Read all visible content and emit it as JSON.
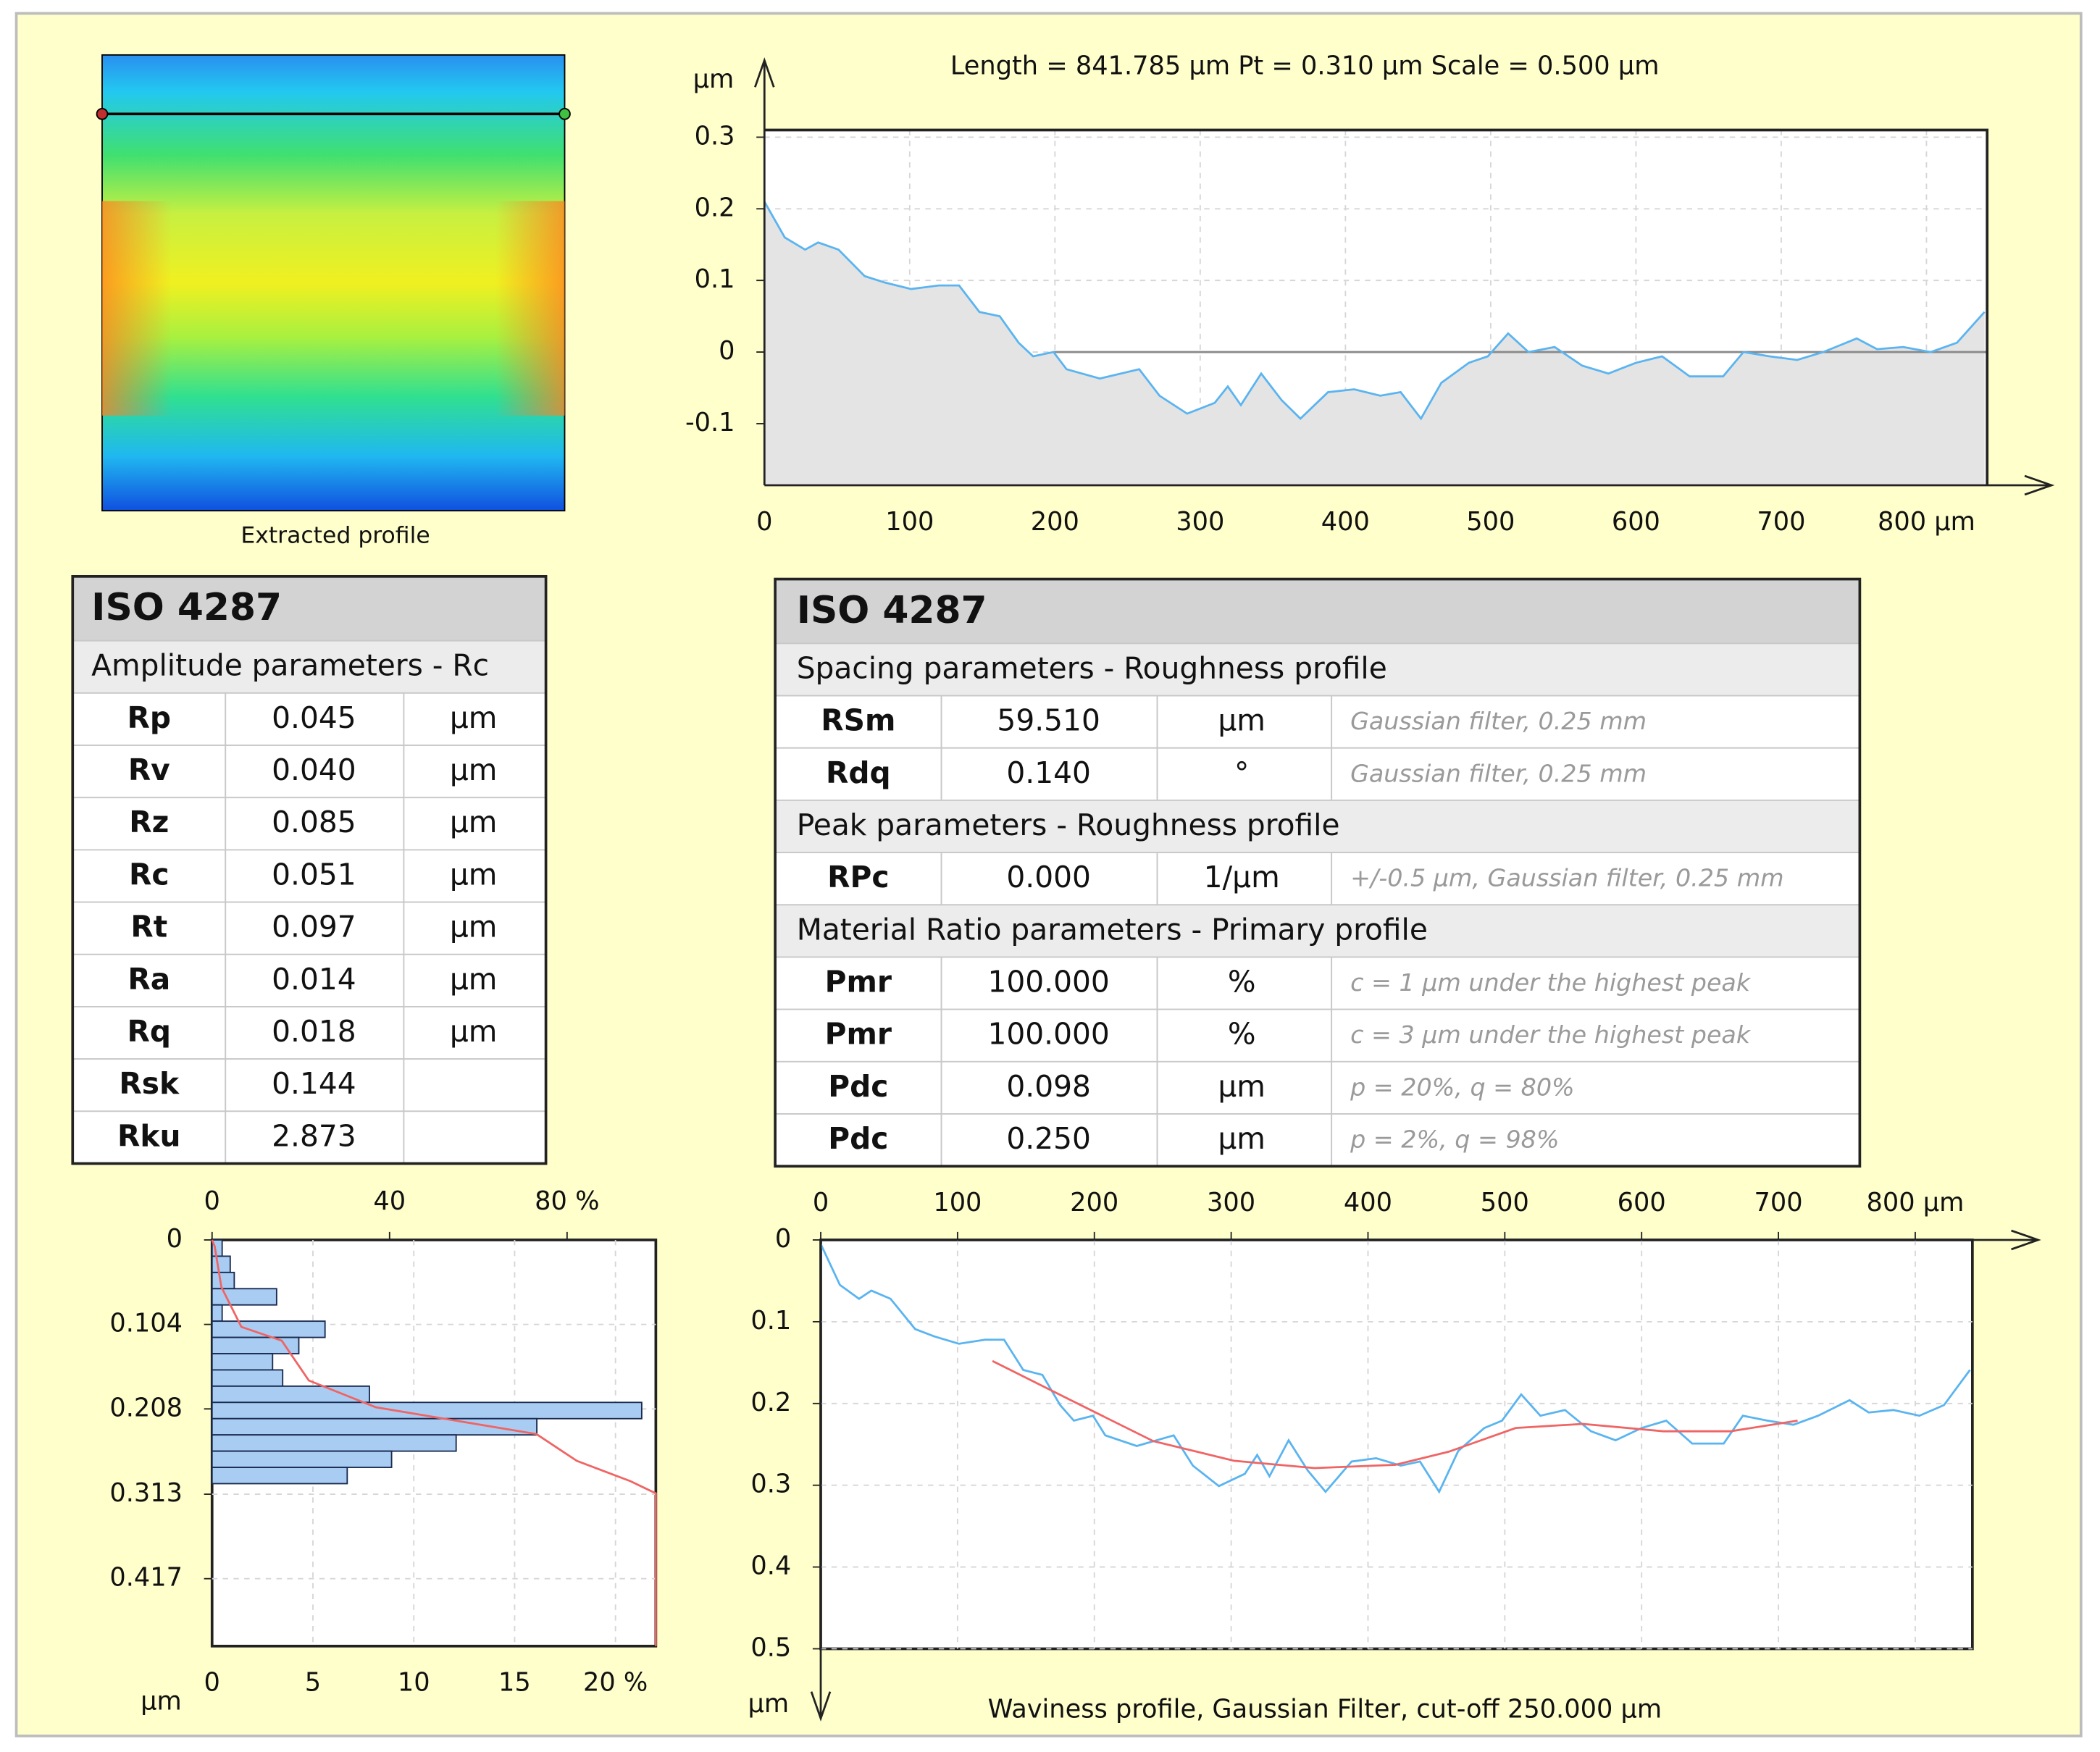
{
  "image": {
    "caption": "Extracted profile"
  },
  "left_table": {
    "title": "ISO 4287",
    "subtitle": "Amplitude parameters - Rc",
    "rows": [
      {
        "name": "Rp",
        "value": "0.045",
        "unit": "µm"
      },
      {
        "name": "Rv",
        "value": "0.040",
        "unit": "µm"
      },
      {
        "name": "Rz",
        "value": "0.085",
        "unit": "µm"
      },
      {
        "name": "Rc",
        "value": "0.051",
        "unit": "µm"
      },
      {
        "name": "Rt",
        "value": "0.097",
        "unit": "µm"
      },
      {
        "name": "Ra",
        "value": "0.014",
        "unit": "µm"
      },
      {
        "name": "Rq",
        "value": "0.018",
        "unit": "µm"
      },
      {
        "name": "Rsk",
        "value": "0.144"
      },
      {
        "name": "Rku",
        "value": "2.873"
      }
    ]
  },
  "right_table": {
    "title": "ISO 4287",
    "sections": [
      {
        "heading": "Spacing parameters - Roughness profile",
        "rows": [
          {
            "name": "RSm",
            "value": "59.510",
            "unit": "µm",
            "note": "Gaussian filter, 0.25 mm"
          },
          {
            "name": "Rdq",
            "value": "0.140",
            "unit": "°",
            "note": "Gaussian filter, 0.25 mm"
          }
        ]
      },
      {
        "heading": "Peak parameters - Roughness profile",
        "rows": [
          {
            "name": "RPc",
            "value": "0.000",
            "unit": "1/µm",
            "note": "+/-0.5 µm, Gaussian filter, 0.25 mm"
          }
        ]
      },
      {
        "heading": "Material Ratio parameters - Primary profile",
        "rows": [
          {
            "name": "Pmr",
            "value": "100.000",
            "unit": "%",
            "note": "c = 1 µm under the highest peak"
          },
          {
            "name": "Pmr",
            "value": "100.000",
            "unit": "%",
            "note": "c = 3 µm under the highest peak"
          },
          {
            "name": "Pdc",
            "value": "0.098",
            "unit": "µm",
            "note": "p = 20%, q = 80%"
          },
          {
            "name": "Pdc",
            "value": "0.250",
            "unit": "µm",
            "note": "p = 2%, q = 98%"
          }
        ]
      }
    ]
  },
  "chart_data": [
    {
      "type": "line",
      "title": "Length = 841.785 µm  Pt = 0.310 µm  Scale = 0.500 µm",
      "y_label": "µm",
      "grid": true,
      "xlim": [
        0,
        841.785
      ],
      "xticks": [
        0,
        100,
        200,
        300,
        400,
        500,
        600,
        700,
        {
          "value": 800,
          "label": "800 µm"
        }
      ],
      "ylim": [
        -0.186,
        0.31
      ],
      "yticks": [
        0.3,
        0.2,
        0.1,
        0,
        -0.1
      ],
      "x": [
        0,
        14,
        28,
        37,
        51,
        69,
        83,
        101,
        120,
        134,
        148,
        162,
        175,
        185,
        199,
        208,
        231,
        258,
        272,
        291,
        310,
        319,
        328,
        342,
        356,
        369,
        388,
        406,
        424,
        438,
        452,
        466,
        485,
        498,
        512,
        526,
        544,
        563,
        581,
        600,
        618,
        637,
        660,
        674,
        692,
        711,
        729,
        752,
        766,
        784,
        803,
        821,
        840
      ],
      "series": [
        {
          "color": "#5ab4f0",
          "values": [
            0.21,
            0.16,
            0.143,
            0.153,
            0.143,
            0.106,
            0.097,
            0.088,
            0.093,
            0.093,
            0.056,
            0.05,
            0.013,
            -0.006,
            0,
            -0.024,
            -0.037,
            -0.024,
            -0.061,
            -0.086,
            -0.071,
            -0.048,
            -0.074,
            -0.03,
            -0.067,
            -0.093,
            -0.056,
            -0.052,
            -0.061,
            -0.056,
            -0.093,
            -0.043,
            -0.015,
            -0.006,
            0.026,
            0,
            0.007,
            -0.019,
            -0.03,
            -0.015,
            -0.006,
            -0.034,
            -0.034,
            0,
            -0.006,
            -0.011,
            0,
            0.019,
            0.004,
            0.007,
            0,
            0.013,
            0.056
          ]
        }
      ]
    },
    {
      "type": "histogram",
      "orientation": "horizontal",
      "y_label": "µm",
      "grid": true,
      "color": "#a9cdf2",
      "bins": [
        0,
        0.02,
        0.04,
        0.06,
        0.08,
        0.1,
        0.12,
        0.14,
        0.16,
        0.18,
        0.2,
        0.22,
        0.24,
        0.26,
        0.28,
        0.3
      ],
      "values": [
        0.5,
        0.9,
        1.1,
        3.2,
        0.5,
        5.6,
        4.3,
        3.0,
        3.5,
        7.8,
        21.3,
        16.1,
        12.1,
        8.9,
        6.7
      ],
      "xlim": [
        0,
        22
      ],
      "xticks": [
        0,
        5,
        10,
        15,
        {
          "value": 20,
          "label": "20 %"
        }
      ],
      "x2lim": [
        0,
        100
      ],
      "x2ticks": [
        0,
        40,
        {
          "value": 80,
          "label": "80 %"
        }
      ],
      "ylim": [
        0,
        0.5
      ],
      "yticks": [
        0,
        0.104,
        0.208,
        0.313,
        0.417
      ],
      "curve": {
        "color": "#f06464",
        "x": [
          0,
          0.6,
          2.1,
          6.6,
          15.7,
          21.8,
          36.9,
          73.1,
          82.2,
          94.3,
          100,
          100
        ],
        "y": [
          0,
          0.008,
          0.058,
          0.107,
          0.124,
          0.173,
          0.206,
          0.239,
          0.272,
          0.297,
          0.312,
          0.5
        ]
      }
    },
    {
      "type": "line",
      "caption": "Waviness profile, Gaussian Filter, cut-off 250.000 µm",
      "y_label": "µm",
      "grid": true,
      "y_inverted": true,
      "xlim": [
        0,
        841.785
      ],
      "xticks": [
        0,
        100,
        200,
        300,
        400,
        500,
        600,
        700,
        {
          "value": 800,
          "label": "800 µm"
        }
      ],
      "ylim": [
        0,
        0.5
      ],
      "yticks": [
        0,
        0.1,
        0.2,
        0.3,
        0.4,
        0.5
      ],
      "series": [
        {
          "color": "#5ab4f0",
          "x": [
            0,
            14,
            28,
            37,
            51,
            69,
            83,
            101,
            120,
            134,
            148,
            162,
            175,
            185,
            199,
            208,
            231,
            258,
            272,
            291,
            310,
            319,
            328,
            342,
            356,
            369,
            388,
            406,
            424,
            438,
            452,
            466,
            485,
            498,
            512,
            526,
            544,
            563,
            581,
            600,
            618,
            637,
            660,
            674,
            692,
            711,
            729,
            752,
            766,
            784,
            803,
            821,
            840
          ],
          "values": [
            0.005,
            0.055,
            0.072,
            0.062,
            0.072,
            0.109,
            0.118,
            0.127,
            0.122,
            0.122,
            0.159,
            0.165,
            0.202,
            0.221,
            0.215,
            0.239,
            0.252,
            0.239,
            0.276,
            0.301,
            0.286,
            0.263,
            0.289,
            0.245,
            0.282,
            0.308,
            0.271,
            0.267,
            0.276,
            0.271,
            0.308,
            0.258,
            0.23,
            0.221,
            0.189,
            0.215,
            0.208,
            0.234,
            0.245,
            0.23,
            0.221,
            0.249,
            0.249,
            0.215,
            0.221,
            0.226,
            0.215,
            0.196,
            0.211,
            0.208,
            0.215,
            0.202,
            0.159
          ]
        },
        {
          "color": "#f06464",
          "x": [
            125.5,
            184,
            243,
            302,
            361,
            420,
            459,
            508,
            557,
            616,
            665,
            714
          ],
          "values": [
            0.148,
            0.197,
            0.246,
            0.27,
            0.279,
            0.275,
            0.259,
            0.23,
            0.225,
            0.234,
            0.234,
            0.221
          ]
        }
      ]
    }
  ]
}
